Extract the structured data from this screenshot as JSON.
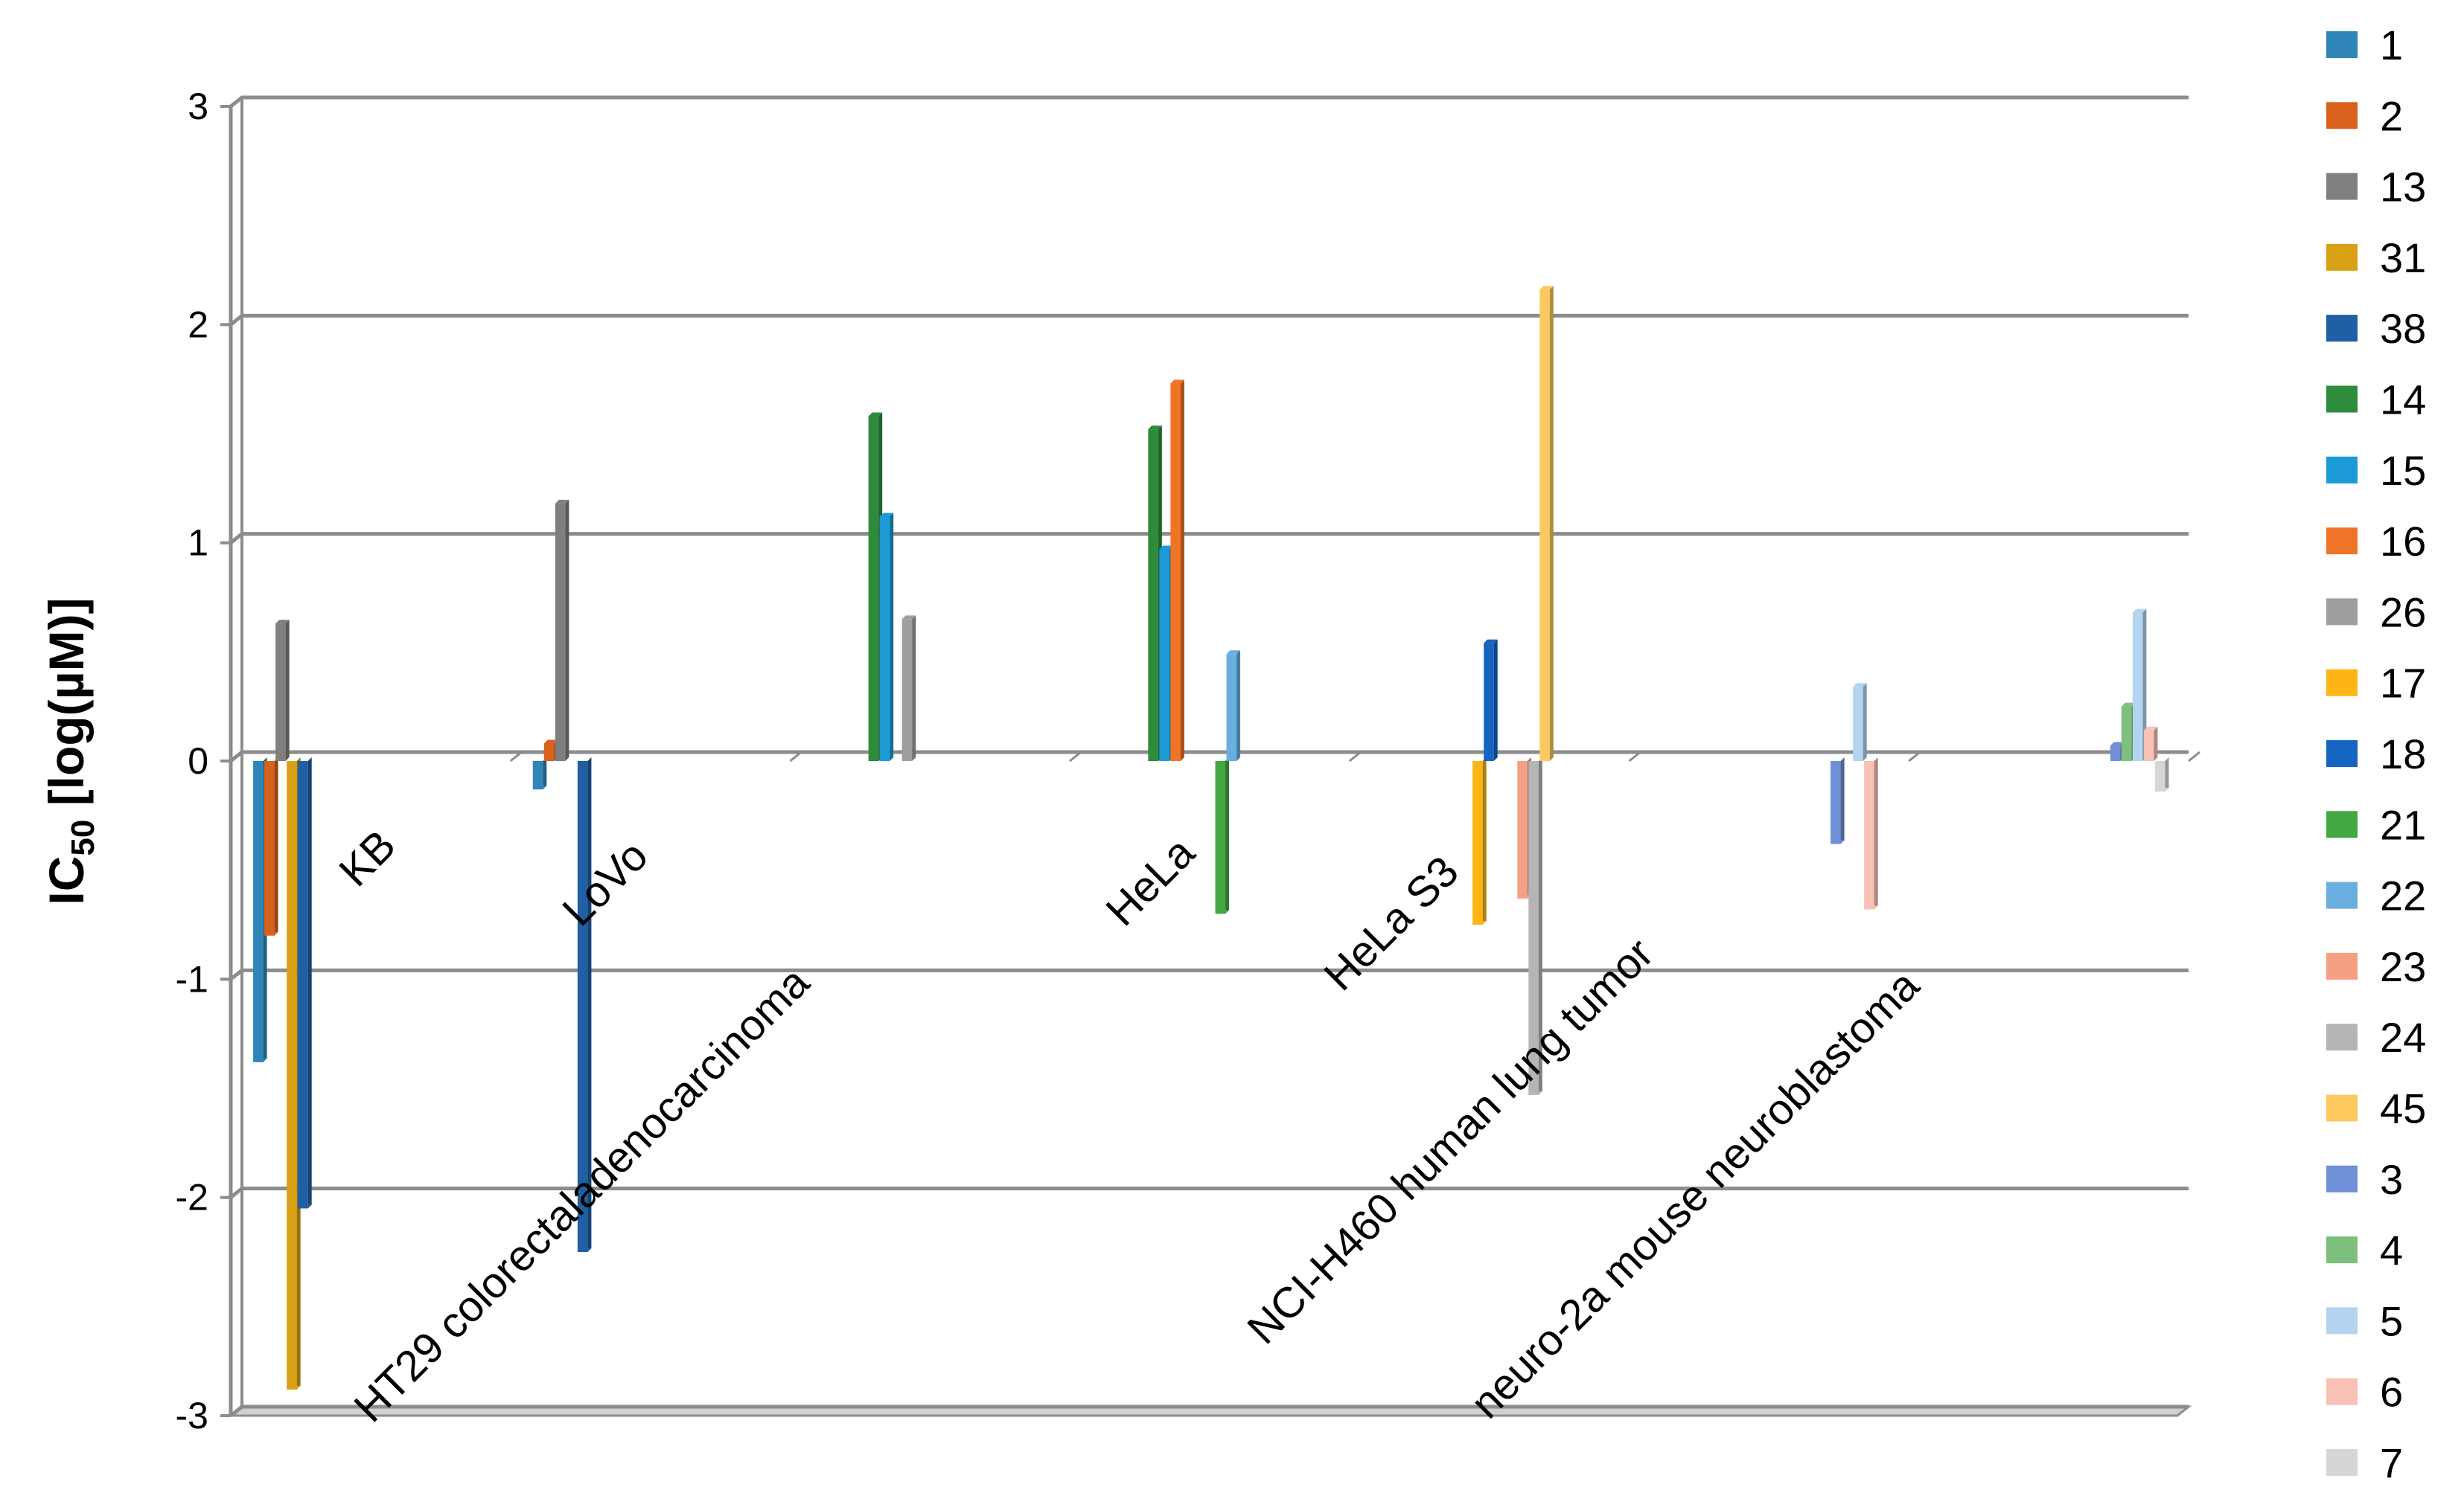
{
  "chart_data": {
    "type": "bar",
    "title": "",
    "xlabel": "",
    "ylabel": {
      "main": "IC",
      "sub": "50",
      "rest": " [log(µM)]"
    },
    "ylim": [
      -3,
      3
    ],
    "yticks": [
      -3,
      -2,
      -1,
      0,
      1,
      2,
      3
    ],
    "grid": true,
    "legend_position": "right",
    "categories": [
      "KB",
      "LoVo",
      "HT29 colorectaladenocarcinoma",
      "HeLa",
      "HeLa S3",
      "NCI-H460 human lung tumor",
      "neuro-2a mouse neuroblastoma"
    ],
    "series": [
      {
        "name": "1",
        "color": "#2E86B8",
        "values": [
          -1.38,
          -0.13,
          null,
          null,
          null,
          null,
          null
        ]
      },
      {
        "name": "2",
        "color": "#D8621B",
        "values": [
          -0.8,
          0.08,
          null,
          null,
          null,
          null,
          null
        ]
      },
      {
        "name": "13",
        "color": "#7F7F7F",
        "values": [
          0.63,
          1.18,
          null,
          null,
          null,
          null,
          null
        ]
      },
      {
        "name": "31",
        "color": "#D8A014",
        "values": [
          -2.88,
          null,
          null,
          null,
          null,
          null,
          null
        ]
      },
      {
        "name": "38",
        "color": "#1F5FA3",
        "values": [
          -2.05,
          -2.25,
          null,
          null,
          null,
          null,
          null
        ]
      },
      {
        "name": "14",
        "color": "#2E8B3C",
        "values": [
          null,
          null,
          1.58,
          1.52,
          null,
          null,
          null
        ]
      },
      {
        "name": "15",
        "color": "#1C9AD6",
        "values": [
          null,
          null,
          1.12,
          0.97,
          null,
          null,
          null
        ]
      },
      {
        "name": "16",
        "color": "#F07427",
        "values": [
          null,
          null,
          null,
          1.73,
          null,
          null,
          null
        ]
      },
      {
        "name": "26",
        "color": "#9E9E9E",
        "values": [
          null,
          null,
          0.65,
          null,
          null,
          null,
          null
        ]
      },
      {
        "name": "17",
        "color": "#FDB515",
        "values": [
          null,
          null,
          null,
          null,
          -0.75,
          null,
          null
        ]
      },
      {
        "name": "18",
        "color": "#1565C0",
        "values": [
          null,
          null,
          null,
          null,
          0.54,
          null,
          null
        ]
      },
      {
        "name": "21",
        "color": "#43A843",
        "values": [
          null,
          null,
          null,
          -0.7,
          null,
          null,
          null
        ]
      },
      {
        "name": "22",
        "color": "#6AAEE0",
        "values": [
          null,
          null,
          null,
          0.49,
          null,
          null,
          null
        ]
      },
      {
        "name": "23",
        "color": "#F6A083",
        "values": [
          null,
          null,
          null,
          null,
          -0.63,
          null,
          null
        ]
      },
      {
        "name": "24",
        "color": "#B5B5B5",
        "values": [
          null,
          null,
          null,
          null,
          -1.53,
          null,
          null
        ]
      },
      {
        "name": "45",
        "color": "#FDC85E",
        "values": [
          null,
          null,
          null,
          null,
          2.16,
          null,
          null
        ]
      },
      {
        "name": "3",
        "color": "#6F8FD6",
        "values": [
          null,
          null,
          null,
          null,
          null,
          -0.38,
          0.07
        ]
      },
      {
        "name": "4",
        "color": "#7DC07D",
        "values": [
          null,
          null,
          null,
          null,
          null,
          null,
          0.25
        ]
      },
      {
        "name": "5",
        "color": "#B3D4F0",
        "values": [
          null,
          null,
          null,
          null,
          null,
          0.34,
          0.68
        ]
      },
      {
        "name": "6",
        "color": "#F8C1B5",
        "values": [
          null,
          null,
          null,
          null,
          null,
          -0.68,
          0.14
        ]
      },
      {
        "name": "7",
        "color": "#D6D6D6",
        "values": [
          null,
          null,
          null,
          null,
          null,
          null,
          -0.14
        ]
      }
    ]
  }
}
